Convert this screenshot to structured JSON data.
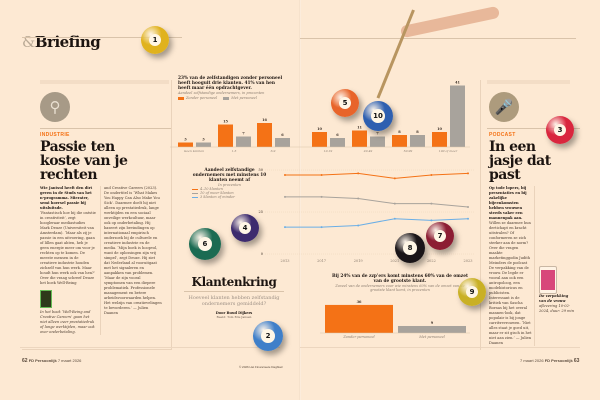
{
  "header": {
    "section_prefix": "&",
    "section": "Briefing"
  },
  "left_article": {
    "kicker": "INDUSTRIE",
    "title": "Passie ten koste van je rechten",
    "lead": "Wie Jantsul heeft den dirt geven in de Studs van het n-programma. Mierater, semi hoersel passie bij uitsluitsde.",
    "col1": "‘Fantastisch hoe bij die ontstie in creativiteit’, zegt hoogleraar mediastudies Mark Deuze (Universiteit van Amsterdam). ‘Maar als zij je passie in een uitvoering, gaan of lillen gaat ahten, heb je geen energie meer om voor je rechten op te komen. De meeste mensen in de creatieve industrie houden zichzelf van hun werk. Maar houdt hun werk ook van hen?’ Over die vraag schreef Deuze het boek Well-Being",
    "col2": "and Creative Careers (2023). De ondertitel is ‘What Makes You Happy Can Also Make You Sick’. Daarmee doelt hij niet alleen op prestatiedruk, lange werktijden en een sociaal onveilige werkcultuur, maar ook op onderbetaling. Hij baseert zijn bevindingen op internationaal empirisch onderzoek bij de culturele en creatieve industrie en de media. ‘Mijn boek is hoopvol, want de oplossingen zijn vrij simpel’, zegt Deuze. Hij ziet dat Nederland al vooruitgaat met het signaleren en aanpakken van problemen. ‘Maar de zijn vooral symptomen van een diepere problematiek. Professionele management en betere arbeidsvoorwaarden helpen. Het welzijn van creatievelingen te bevorderen.’ — Julien Daanen",
    "caption": "In het boek ‘Well-Being and Creative Careers’ gaan het niet alleen over prestatiedruk of lange werktijden, maar ook over onderbetaling."
  },
  "bar_chart": {
    "title": "23% van de zelfstandigen zonder personeel heeft hooguit drie klanten. 41% van hen heeft maar één opdrachtgever.",
    "subtitle": "Aandeel zelfstandige ondernemers, in procenten",
    "legend": [
      "Zonder personeel",
      "Met personeel"
    ],
    "categories": [
      "Geen klanten",
      "1-5",
      "6-9",
      "10-19",
      "20-49",
      "50-99",
      "100 of meer"
    ],
    "series": [
      {
        "name": "Zonder personeel",
        "values": [
          3,
          15,
          16,
          10,
          11,
          8,
          10
        ]
      },
      {
        "name": "Met personeel",
        "values": [
          3,
          7,
          6,
          6,
          7,
          8,
          41
        ]
      }
    ]
  },
  "line_chart": {
    "title": "Aandeel zelfstandige ondernemers met minstens 10 klanten neemt af",
    "subtitle": "In procenten",
    "legend": [
      "4–10 klanten",
      "10 of meer klanten",
      "3 klanten of minder"
    ],
    "yticks": [
      "50",
      "25",
      "0"
    ],
    "x": [
      "2013",
      "2017",
      "2019",
      "2021",
      "2022",
      "2023"
    ],
    "series": [
      {
        "name": "4–10 klanten",
        "values": [
          47,
          47,
          48,
          45,
          47,
          48
        ]
      },
      {
        "name": "10 of meer klanten",
        "values": [
          34,
          34,
          33,
          30,
          30,
          28
        ]
      },
      {
        "name": "3 klanten of minder",
        "values": [
          16,
          16,
          17,
          21,
          20,
          21
        ]
      }
    ]
  },
  "center": {
    "title": "Klantenkring",
    "subtitle": "Hoeveel klanten hebben zelfstandig ondernemers gemiddeld?",
    "byline": "Door Ruud Dijkers",
    "credit": "Beeld: Tom Ede Jansen"
  },
  "small_chart": {
    "title": "Bij 24% van de zzp’ers komt minstens 60% van de omzet van de grootste klant.",
    "subtitle": "Zoveel van de ondernemers voor wie minstens 60% van de omzet van de grootste klant komt, in procenten",
    "categories": [
      "Zonder personeel",
      "Met personeel"
    ],
    "values": [
      36,
      9
    ]
  },
  "right_article": {
    "kicker": "PODCAST",
    "title": "In een jasje dat past",
    "lead": "Op tode lopers, bij presentaties en bij zakelijke bijeenkomsten hebben vrouwen steeds vaker een mannenpak aan.",
    "col": "Willen ze daarmee hun dertichapt en kracht uitstralen? Of conformeren ze zich sterker aan de norm? Over die vragen maakte marketinggodin Judith Meinders de podcast De verpakking van de vrouw. De legde er vooral aan ook een antropoloog, een modehistoricus en publicisten. Interessant is de kritiek van Sascha Bornas bij het overal mannen-look, dat populair is bij jonge carrièrevrouwen. ‘Niet alles staat je goed uit, maar er zit gisch in het niet aan zien.’ — Julien Daanen",
    "caption_title": "De verpakking van de vrouw",
    "caption": "aflevering 10-02-2024, duur: 29 min"
  },
  "footer": {
    "left_page": "62",
    "left_pub": "FD Persoonlijk",
    "left_date": "7 maart 2026",
    "right_date": "7 maart 2026",
    "right_pub": "FD Persoonlijk",
    "right_page": "63",
    "copyright": "© 2026 Het Financieele Dagblad"
  },
  "balls": [
    "1",
    "5",
    "10",
    "3",
    "6",
    "4",
    "8",
    "7",
    "9",
    "2"
  ],
  "colors": {
    "orange": "#f47216",
    "gray": "#a8a39c",
    "blue": "#6aaee6",
    "bg": "#fde9d3"
  }
}
